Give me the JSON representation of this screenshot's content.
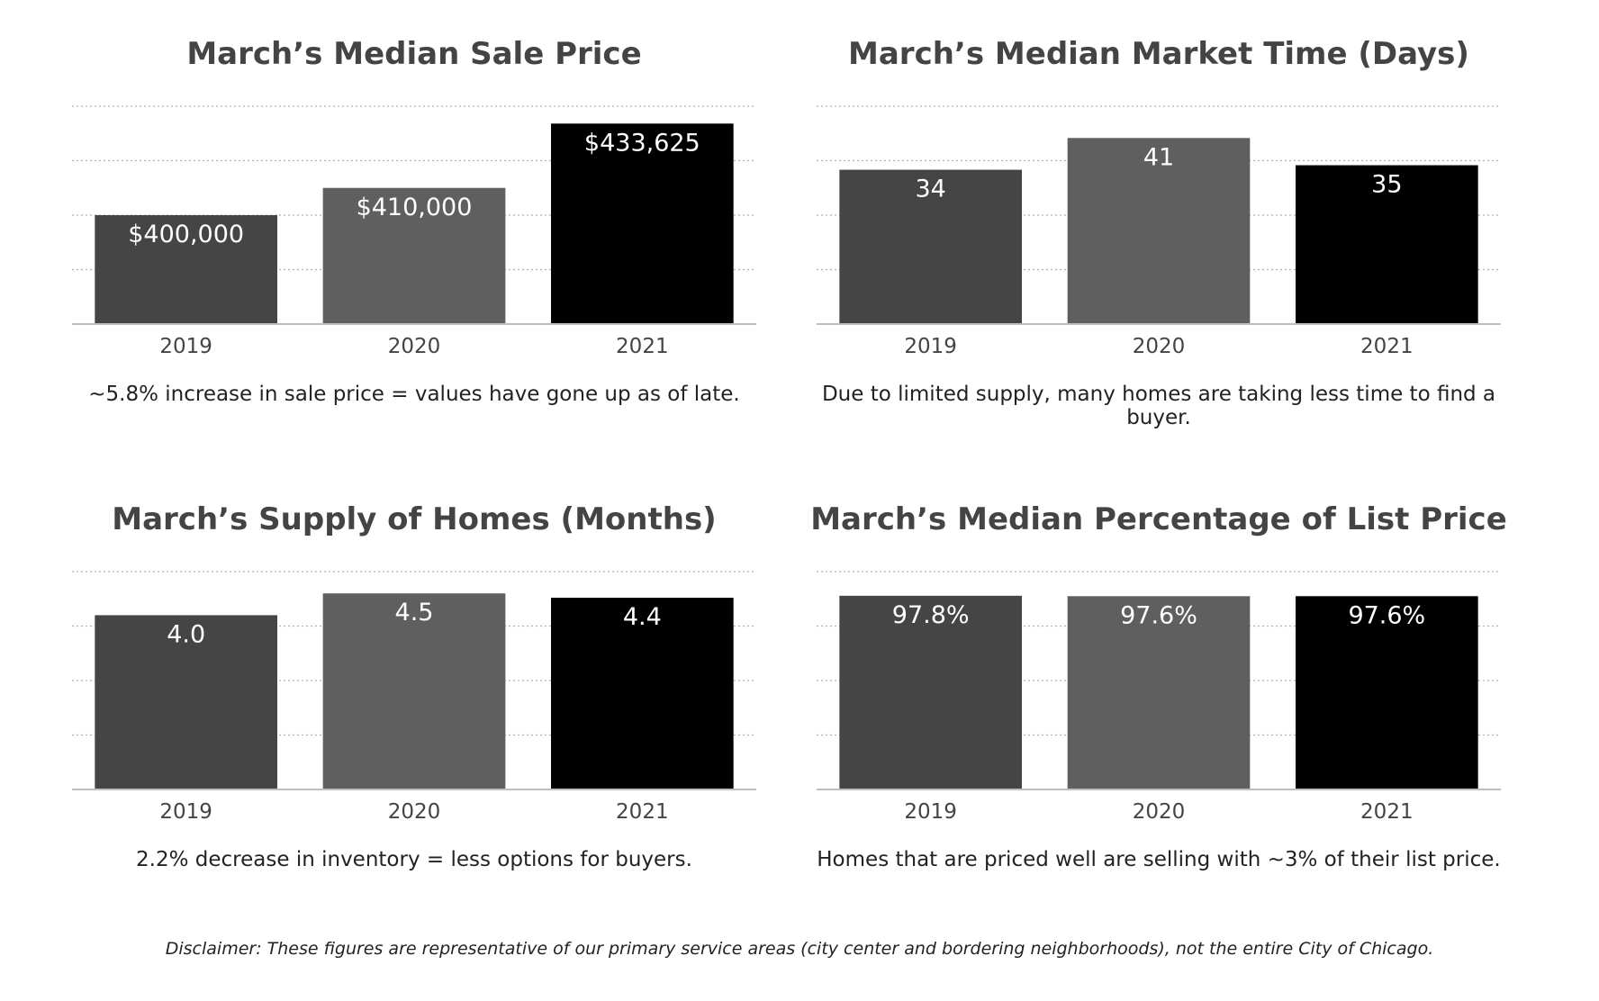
{
  "chart_data": [
    {
      "type": "bar",
      "title": "March’s Median Sale Price",
      "categories": [
        "2019",
        "2020",
        "2021"
      ],
      "values": [
        400000,
        410000,
        433625
      ],
      "data_labels": [
        "$400,000",
        "$410,000",
        "$433,625"
      ],
      "colors": [
        "#454545",
        "#5f5f5f",
        "#000000"
      ],
      "ylim": [
        360000,
        440000
      ],
      "grid": true,
      "caption": "~5.8% increase in sale price = values have gone up as of late."
    },
    {
      "type": "bar",
      "title": "March’s Median Market Time (Days)",
      "categories": [
        "2019",
        "2020",
        "2021"
      ],
      "values": [
        34,
        41,
        35
      ],
      "data_labels": [
        "34",
        "41",
        "35"
      ],
      "colors": [
        "#454545",
        "#5f5f5f",
        "#000000"
      ],
      "ylim": [
        0,
        48
      ],
      "grid": true,
      "caption": "Due to limited supply, many homes are taking less time to find a buyer."
    },
    {
      "type": "bar",
      "title": "March’s Supply of Homes (Months)",
      "categories": [
        "2019",
        "2020",
        "2021"
      ],
      "values": [
        4.0,
        4.5,
        4.4
      ],
      "data_labels": [
        "4.0",
        "4.5",
        "4.4"
      ],
      "colors": [
        "#454545",
        "#5f5f5f",
        "#000000"
      ],
      "ylim": [
        0,
        5
      ],
      "grid": true,
      "caption": "2.2% decrease in inventory = less options for buyers."
    },
    {
      "type": "bar",
      "title": "March’s Median Percentage of List Price",
      "categories": [
        "2019",
        "2020",
        "2021"
      ],
      "values": [
        97.8,
        97.6,
        97.6
      ],
      "data_labels": [
        "97.8%",
        "97.6%",
        "97.6%"
      ],
      "colors": [
        "#454545",
        "#5f5f5f",
        "#000000"
      ],
      "ylim": [
        0,
        110
      ],
      "grid": true,
      "caption": "Homes that are priced well are selling with ~3% of their list price."
    }
  ],
  "disclaimer": "Disclaimer: These figures are representative of our primary service areas (city center and bordering neighborhoods), not the entire City of Chicago."
}
